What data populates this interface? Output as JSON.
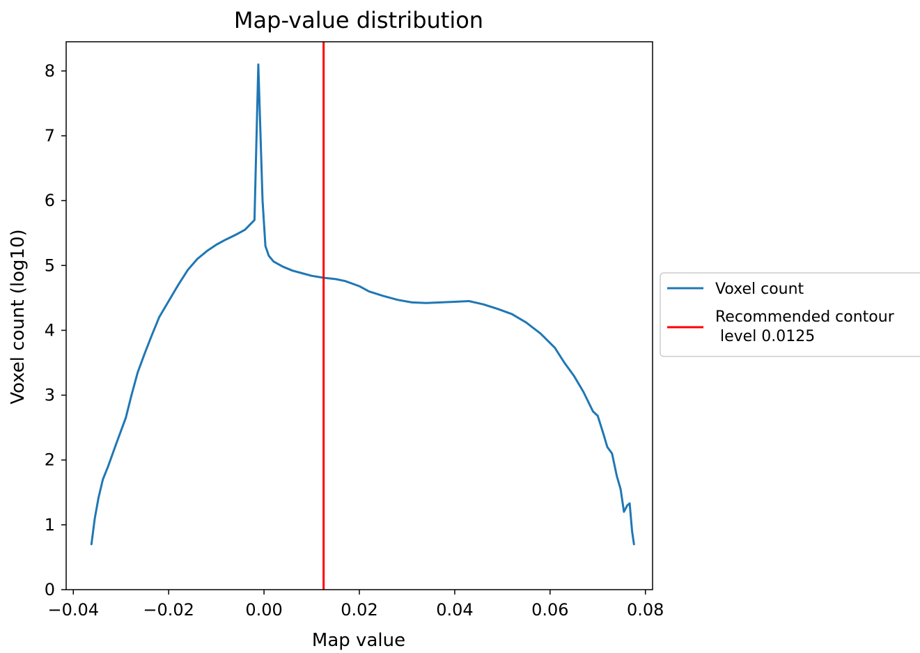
{
  "chart_data": {
    "type": "line",
    "title": "Map-value distribution",
    "xlabel": "Map value",
    "ylabel": "Voxel count (log10)",
    "xlim": [
      -0.0415,
      0.0815
    ],
    "ylim": [
      0,
      8.45
    ],
    "x_ticks": [
      -0.04,
      -0.02,
      0.0,
      0.02,
      0.04,
      0.06,
      0.08
    ],
    "x_tick_labels": [
      "−0.04",
      "−0.02",
      "0.00",
      "0.02",
      "0.04",
      "0.06",
      "0.08"
    ],
    "y_ticks": [
      0,
      1,
      2,
      3,
      4,
      5,
      6,
      7,
      8
    ],
    "y_tick_labels": [
      "0",
      "1",
      "2",
      "3",
      "4",
      "5",
      "6",
      "7",
      "8"
    ],
    "grid": false,
    "legend_position": "outside-right",
    "series": [
      {
        "name": "Voxel count",
        "color": "#1f77b4",
        "points": [
          [
            -0.0362,
            0.7
          ],
          [
            -0.0355,
            1.1
          ],
          [
            -0.0347,
            1.42
          ],
          [
            -0.0338,
            1.7
          ],
          [
            -0.0327,
            1.9
          ],
          [
            -0.031,
            2.25
          ],
          [
            -0.029,
            2.65
          ],
          [
            -0.0278,
            3.0
          ],
          [
            -0.0265,
            3.35
          ],
          [
            -0.025,
            3.65
          ],
          [
            -0.0235,
            3.93
          ],
          [
            -0.022,
            4.2
          ],
          [
            -0.02,
            4.45
          ],
          [
            -0.018,
            4.7
          ],
          [
            -0.016,
            4.93
          ],
          [
            -0.014,
            5.1
          ],
          [
            -0.012,
            5.22
          ],
          [
            -0.01,
            5.32
          ],
          [
            -0.008,
            5.4
          ],
          [
            -0.006,
            5.47
          ],
          [
            -0.004,
            5.55
          ],
          [
            -0.002,
            5.7
          ],
          [
            -0.0012,
            8.1
          ],
          [
            -0.0003,
            6.0
          ],
          [
            0.0003,
            5.3
          ],
          [
            0.001,
            5.15
          ],
          [
            0.002,
            5.06
          ],
          [
            0.004,
            4.98
          ],
          [
            0.006,
            4.92
          ],
          [
            0.008,
            4.88
          ],
          [
            0.01,
            4.84
          ],
          [
            0.0125,
            4.81
          ],
          [
            0.015,
            4.79
          ],
          [
            0.017,
            4.76
          ],
          [
            0.02,
            4.68
          ],
          [
            0.022,
            4.6
          ],
          [
            0.025,
            4.53
          ],
          [
            0.028,
            4.47
          ],
          [
            0.031,
            4.43
          ],
          [
            0.034,
            4.42
          ],
          [
            0.037,
            4.43
          ],
          [
            0.04,
            4.44
          ],
          [
            0.043,
            4.45
          ],
          [
            0.046,
            4.4
          ],
          [
            0.049,
            4.33
          ],
          [
            0.052,
            4.25
          ],
          [
            0.055,
            4.12
          ],
          [
            0.058,
            3.95
          ],
          [
            0.061,
            3.73
          ],
          [
            0.063,
            3.5
          ],
          [
            0.065,
            3.3
          ],
          [
            0.067,
            3.05
          ],
          [
            0.069,
            2.75
          ],
          [
            0.07,
            2.68
          ],
          [
            0.0712,
            2.4
          ],
          [
            0.072,
            2.2
          ],
          [
            0.073,
            2.1
          ],
          [
            0.074,
            1.75
          ],
          [
            0.0748,
            1.55
          ],
          [
            0.0755,
            1.2
          ],
          [
            0.0762,
            1.3
          ],
          [
            0.0767,
            1.33
          ],
          [
            0.0772,
            0.9
          ],
          [
            0.0776,
            0.7
          ]
        ]
      },
      {
        "name": "Recommended contour\n level 0.0125",
        "color": "#ff0000",
        "type": "vline",
        "x": 0.0125
      }
    ]
  }
}
